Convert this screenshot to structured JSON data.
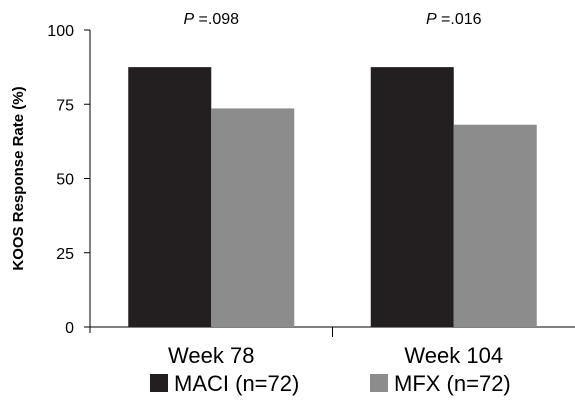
{
  "chart_data": {
    "type": "bar",
    "title": "",
    "xlabel": "",
    "ylabel": "KOOS Response Rate (%)",
    "ylim": [
      0,
      100
    ],
    "yticks": [
      0,
      25,
      50,
      75,
      100
    ],
    "categories": [
      "Week 78",
      "Week 104"
    ],
    "series": [
      {
        "name": "MACI (n=72)",
        "values": [
          87.5,
          87.5
        ],
        "color": "#231f20"
      },
      {
        "name": "MFX (n=72)",
        "values": [
          73.6,
          68.1
        ],
        "color": "#8c8c8c"
      }
    ],
    "annotations": [
      {
        "prefix": "P",
        "text": " =.098"
      },
      {
        "prefix": "P",
        "text": " =.016"
      }
    ],
    "legend_position": "bottom",
    "grid": false
  }
}
